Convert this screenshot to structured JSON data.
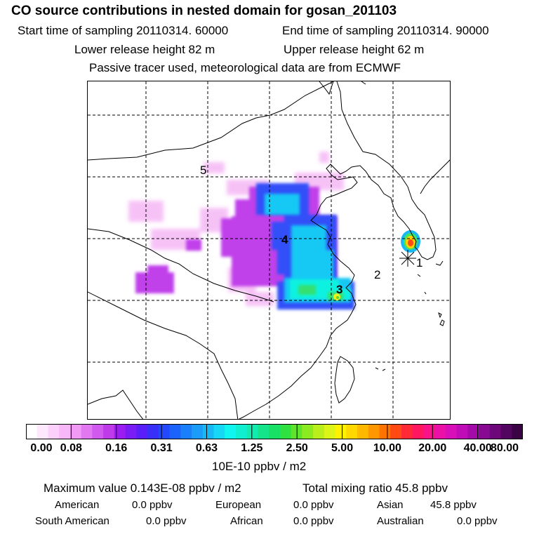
{
  "header": {
    "title": "CO  source contributions in nested domain for gosan_201103",
    "start_label": "Start time of sampling 20110314. 60000",
    "end_label": "End time of sampling 20110314. 90000",
    "lower_label": "Lower release height   82 m",
    "upper_label": "Upper release height   62 m",
    "note": "Passive tracer used, meteorological data are from ECMWF"
  },
  "map": {
    "region_labels": [
      "1",
      "2",
      "3",
      "4",
      "5"
    ]
  },
  "colorbar": {
    "tick_labels": [
      "0.00",
      "0.08",
      "0.16",
      "0.31",
      "0.63",
      "1.25",
      "2.50",
      "5.00",
      "10.00",
      "20.00",
      "40.00",
      "80.00"
    ],
    "colors": [
      "#ffffff",
      "#fde8fd",
      "#fbd0fb",
      "#f8b8f8",
      "#f099f5",
      "#e277f2",
      "#d159ef",
      "#bf3ae9",
      "#9b1df0",
      "#7a1cf4",
      "#5a1ef8",
      "#3a2ef9",
      "#2448fb",
      "#1c63fb",
      "#1a80fa",
      "#1a9cf8",
      "#18b8f5",
      "#16d8f5",
      "#10f5f0",
      "#10f0d0",
      "#12eab0",
      "#16e48a",
      "#18df66",
      "#2ee040",
      "#5ee42a",
      "#8cea20",
      "#b8ef1c",
      "#dcf418",
      "#fff200",
      "#ffd800",
      "#ffba00",
      "#ff9800",
      "#ff7400",
      "#ff4a14",
      "#ff2a38",
      "#ff1860",
      "#f81488",
      "#ea10a8",
      "#d80eb8",
      "#c00cb8",
      "#a40aa8",
      "#880a92",
      "#6e087a",
      "#520660",
      "#3a0444"
    ],
    "unit": "10E-10 ppbv / m2"
  },
  "summary": {
    "max_label": "Maximum value  0.143E-08 ppbv / m2",
    "total_label": "Total mixing ratio       45.8 ppbv"
  },
  "regions": {
    "american": {
      "name": "American",
      "value": "0.0 ppbv"
    },
    "european": {
      "name": "European",
      "value": "0.0 ppbv"
    },
    "asian": {
      "name": "Asian",
      "value": "45.8 ppbv"
    },
    "south_american": {
      "name": "South American",
      "value": "0.0 ppbv"
    },
    "african": {
      "name": "African",
      "value": "0.0 ppbv"
    },
    "australian": {
      "name": "Australian",
      "value": "0.0 ppbv"
    }
  }
}
